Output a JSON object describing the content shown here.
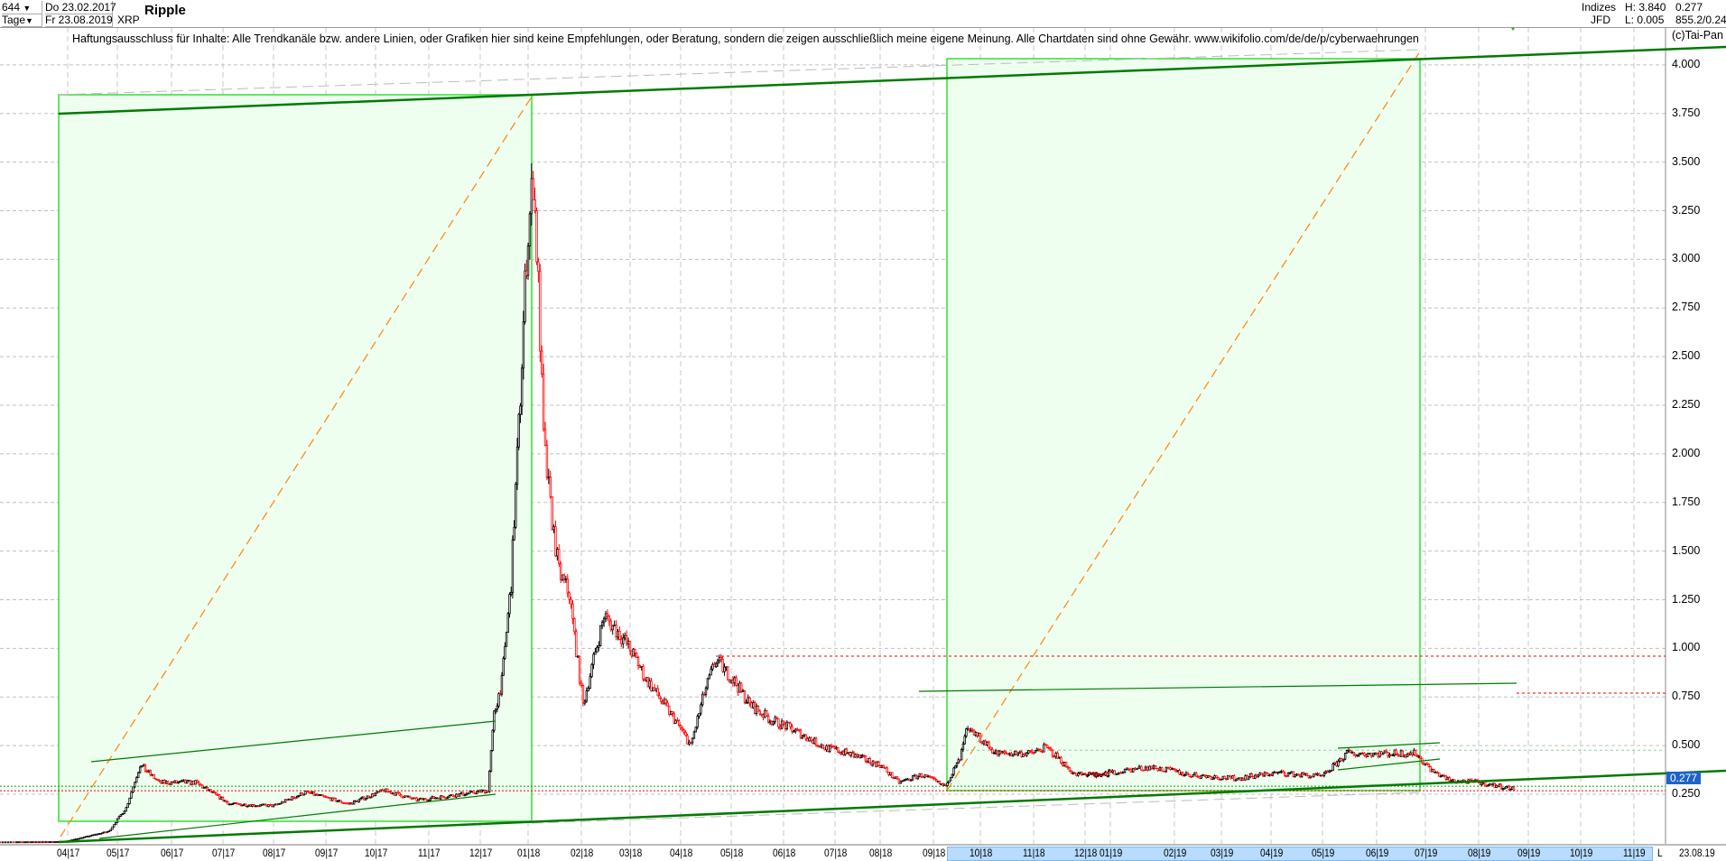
{
  "header": {
    "count_select": "644",
    "start_date": "Do 23.02.2017",
    "period_select": "Tage",
    "end_date": "Fr 23.08.2019",
    "symbol": "XRP",
    "title": "Ripple",
    "exchange_group": "Indizes",
    "exchange": "JFD",
    "high": "H: 3.840",
    "low": "L: 0.005",
    "last": "0.277",
    "volume_info": "855.2/0.24"
  },
  "disclaimer": "Haftungsausschluss für Inhalte: Alle Trendkanäle bzw. andere Linien, oder Grafiken hier sind keine Empfehlungen, oder Beratung, sondern die zeigen ausschließlich meine eigene Meinung. Alle Chartdaten sind ohne Gewähr.  www.wikifolio.com/de/de/p/cyberwaehrungen",
  "copyright": "(c)Tai-Pan",
  "x_axis_end_marker": "L",
  "x_axis_end_date": "23.08.19",
  "price_tag": "0.277",
  "chart_data": {
    "type": "candlestick",
    "title": "Ripple",
    "ylim": [
      0,
      4.1
    ],
    "grid": true,
    "colors": {
      "up": "#000000",
      "down": "#ff0000",
      "box_fill": "#eefff0",
      "box_stroke": "#33dd33",
      "trend": "#007a00",
      "projection": "#ff8c1a"
    },
    "y_ticks": [
      "0.250",
      "0.500",
      "0.750",
      "1.000",
      "1.250",
      "1.500",
      "1.750",
      "2.000",
      "2.250",
      "2.500",
      "2.750",
      "3.000",
      "3.250",
      "3.500",
      "3.750",
      "4.000"
    ],
    "x_ticks": [
      "04|17",
      "05|17",
      "06|17",
      "07|17",
      "08|17",
      "09|17",
      "10|17",
      "11|17",
      "12|17",
      "01|18",
      "02|18",
      "03|18",
      "04|18",
      "05|18",
      "06|18",
      "07|18",
      "08|18",
      "09|18",
      "10|18",
      "11|18",
      "12|18",
      "01|19",
      "02|19",
      "03|19",
      "04|19",
      "05|19",
      "06|19",
      "07|19",
      "08|19",
      "09|19",
      "10|19",
      "11|19"
    ],
    "horizontal_levels": [
      0.96,
      0.77,
      0.476,
      0.277
    ],
    "closes": [
      [
        "2017-02-23",
        0.005
      ],
      [
        "2017-03-25",
        0.006
      ],
      [
        "2017-04-01",
        0.01
      ],
      [
        "2017-04-26",
        0.06
      ],
      [
        "2017-05-06",
        0.18
      ],
      [
        "2017-05-14",
        0.4
      ],
      [
        "2017-05-25",
        0.31
      ],
      [
        "2017-06-15",
        0.31
      ],
      [
        "2017-07-05",
        0.2
      ],
      [
        "2017-08-01",
        0.19
      ],
      [
        "2017-08-20",
        0.26
      ],
      [
        "2017-09-15",
        0.2
      ],
      [
        "2017-10-06",
        0.27
      ],
      [
        "2017-10-25",
        0.22
      ],
      [
        "2017-11-20",
        0.25
      ],
      [
        "2017-12-06",
        0.27
      ],
      [
        "2017-12-10",
        0.66
      ],
      [
        "2017-12-15",
        0.83
      ],
      [
        "2017-12-21",
        1.34
      ],
      [
        "2017-12-27",
        2.3
      ],
      [
        "2017-12-31",
        3.03
      ],
      [
        "2018-01-04",
        3.43
      ],
      [
        "2018-01-07",
        2.86
      ],
      [
        "2018-01-10",
        2.07
      ],
      [
        "2018-01-14",
        1.73
      ],
      [
        "2018-01-19",
        1.39
      ],
      [
        "2018-01-25",
        1.28
      ],
      [
        "2018-02-02",
        0.71
      ],
      [
        "2018-02-08",
        0.94
      ],
      [
        "2018-02-14",
        1.17
      ],
      [
        "2018-02-25",
        1.05
      ],
      [
        "2018-03-05",
        0.94
      ],
      [
        "2018-03-10",
        0.85
      ],
      [
        "2018-03-22",
        0.71
      ],
      [
        "2018-03-31",
        0.6
      ],
      [
        "2018-04-07",
        0.5
      ],
      [
        "2018-04-15",
        0.77
      ],
      [
        "2018-04-22",
        0.94
      ],
      [
        "2018-05-03",
        0.83
      ],
      [
        "2018-05-12",
        0.71
      ],
      [
        "2018-05-25",
        0.63
      ],
      [
        "2018-06-05",
        0.59
      ],
      [
        "2018-06-25",
        0.49
      ],
      [
        "2018-07-10",
        0.46
      ],
      [
        "2018-08-01",
        0.4
      ],
      [
        "2018-08-12",
        0.31
      ],
      [
        "2018-08-25",
        0.35
      ],
      [
        "2018-09-08",
        0.29
      ],
      [
        "2018-09-18",
        0.43
      ],
      [
        "2018-09-22",
        0.57
      ],
      [
        "2018-09-28",
        0.56
      ],
      [
        "2018-10-10",
        0.46
      ],
      [
        "2018-10-30",
        0.46
      ],
      [
        "2018-11-08",
        0.49
      ],
      [
        "2018-11-15",
        0.44
      ],
      [
        "2018-11-25",
        0.35
      ],
      [
        "2018-12-25",
        0.35
      ],
      [
        "2019-01-20",
        0.39
      ],
      [
        "2019-02-10",
        0.35
      ],
      [
        "2019-03-10",
        0.33
      ],
      [
        "2019-04-05",
        0.36
      ],
      [
        "2019-05-01",
        0.34
      ],
      [
        "2019-05-15",
        0.46
      ],
      [
        "2019-06-05",
        0.46
      ],
      [
        "2019-06-25",
        0.46
      ],
      [
        "2019-07-05",
        0.37
      ],
      [
        "2019-07-15",
        0.32
      ],
      [
        "2019-08-01",
        0.31
      ],
      [
        "2019-08-23",
        0.277
      ]
    ]
  }
}
